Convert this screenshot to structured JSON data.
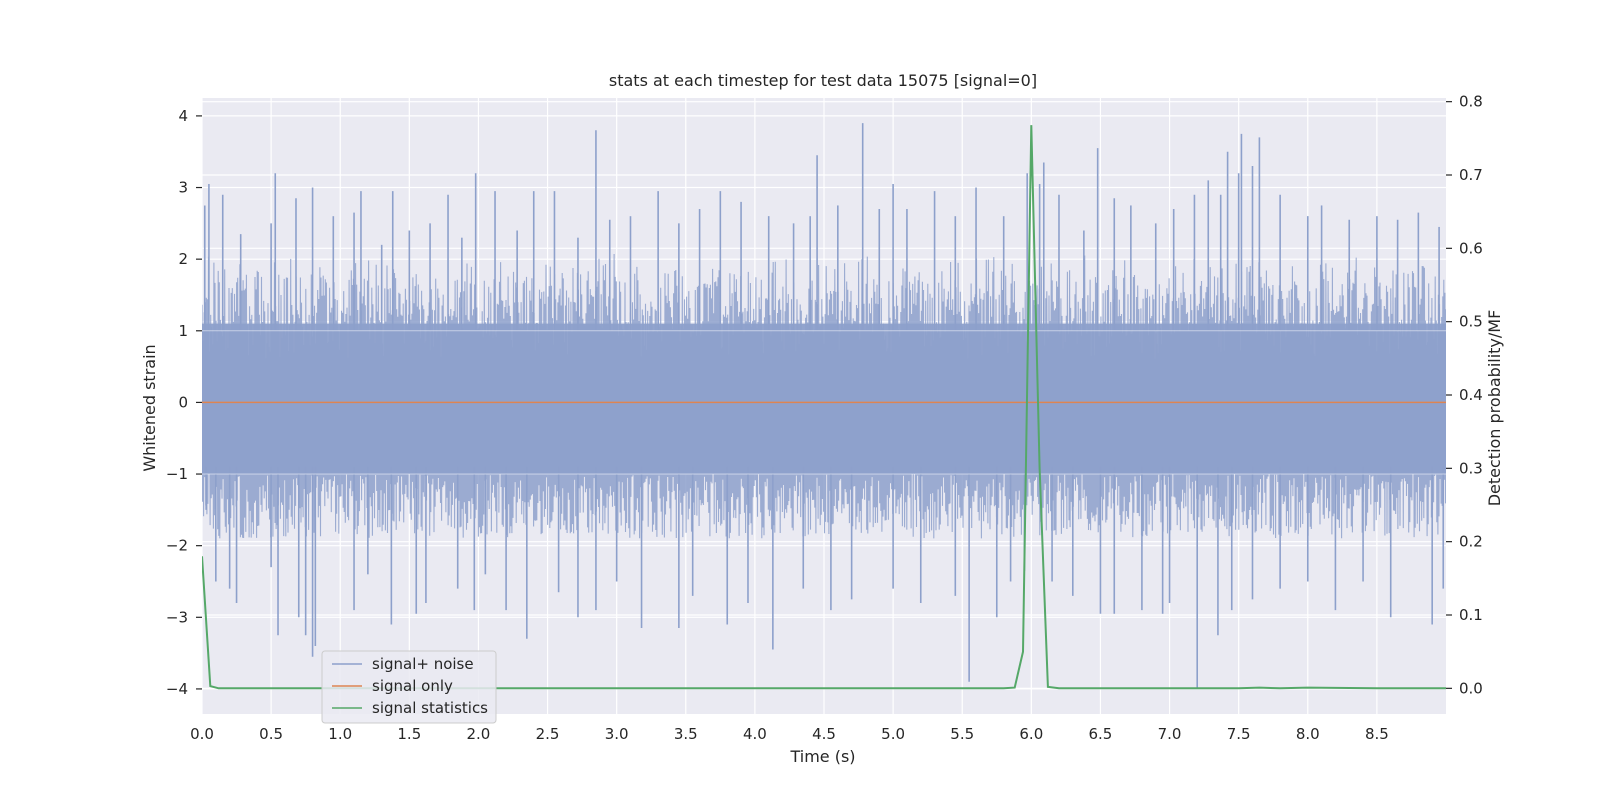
{
  "chart_data": {
    "type": "line",
    "title": "stats at each timestep for test data 15075 [signal=0]",
    "xlabel": "Time (s)",
    "ylabel_left": "Whitened strain",
    "ylabel_right": "Detection probability/MF",
    "xlim": [
      0.0,
      9.0
    ],
    "ylim_left": [
      -4.35,
      4.25
    ],
    "ylim_right": [
      -0.035,
      0.805
    ],
    "xticks": [
      "0.0",
      "0.5",
      "1.0",
      "1.5",
      "2.0",
      "2.5",
      "3.0",
      "3.5",
      "4.0",
      "4.5",
      "5.0",
      "5.5",
      "6.0",
      "6.5",
      "7.0",
      "7.5",
      "8.0",
      "8.5"
    ],
    "yticks_left": [
      "−4",
      "−3",
      "−2",
      "−1",
      "0",
      "1",
      "2",
      "3",
      "4"
    ],
    "yticks_right": [
      "0.0",
      "0.1",
      "0.2",
      "0.3",
      "0.4",
      "0.5",
      "0.6",
      "0.7",
      "0.8"
    ],
    "grid": true,
    "legend_position": "lower-left",
    "colors": {
      "noise": "#8da0cb",
      "signal_only": "#dd8452",
      "statistics": "#55a868",
      "plot_bg": "#eaeaf2",
      "grid": "#ffffff"
    },
    "series": [
      {
        "name": "signal+ noise",
        "axis": "left",
        "noise_band": [
          -1.0,
          1.1
        ],
        "peaks_high": [
          [
            0.02,
            2.75
          ],
          [
            0.05,
            3.05
          ],
          [
            0.15,
            2.9
          ],
          [
            0.28,
            2.35
          ],
          [
            0.5,
            2.5
          ],
          [
            0.53,
            3.2
          ],
          [
            0.68,
            2.85
          ],
          [
            0.8,
            3.0
          ],
          [
            0.95,
            2.6
          ],
          [
            1.1,
            2.65
          ],
          [
            1.15,
            2.95
          ],
          [
            1.3,
            2.2
          ],
          [
            1.38,
            2.95
          ],
          [
            1.5,
            2.4
          ],
          [
            1.65,
            2.5
          ],
          [
            1.78,
            2.9
          ],
          [
            1.88,
            2.3
          ],
          [
            1.98,
            3.2
          ],
          [
            2.12,
            2.95
          ],
          [
            2.28,
            2.4
          ],
          [
            2.4,
            2.95
          ],
          [
            2.55,
            2.95
          ],
          [
            2.72,
            2.3
          ],
          [
            2.85,
            3.8
          ],
          [
            2.95,
            2.55
          ],
          [
            3.1,
            2.6
          ],
          [
            3.3,
            2.95
          ],
          [
            3.45,
            2.5
          ],
          [
            3.6,
            2.7
          ],
          [
            3.75,
            2.95
          ],
          [
            3.9,
            2.8
          ],
          [
            4.1,
            2.6
          ],
          [
            4.28,
            2.5
          ],
          [
            4.4,
            2.6
          ],
          [
            4.45,
            3.45
          ],
          [
            4.6,
            2.75
          ],
          [
            4.78,
            3.9
          ],
          [
            4.9,
            2.7
          ],
          [
            5.0,
            3.05
          ],
          [
            5.1,
            2.7
          ],
          [
            5.3,
            2.95
          ],
          [
            5.45,
            2.6
          ],
          [
            5.6,
            3.0
          ],
          [
            5.8,
            2.6
          ],
          [
            5.97,
            3.2
          ],
          [
            6.06,
            3.05
          ],
          [
            6.09,
            3.35
          ],
          [
            6.2,
            2.9
          ],
          [
            6.38,
            2.4
          ],
          [
            6.48,
            3.55
          ],
          [
            6.6,
            2.85
          ],
          [
            6.72,
            2.75
          ],
          [
            6.9,
            2.5
          ],
          [
            7.03,
            2.7
          ],
          [
            7.18,
            2.9
          ],
          [
            7.28,
            3.1
          ],
          [
            7.37,
            2.9
          ],
          [
            7.42,
            3.5
          ],
          [
            7.5,
            3.2
          ],
          [
            7.52,
            3.75
          ],
          [
            7.6,
            3.3
          ],
          [
            7.65,
            3.7
          ],
          [
            7.8,
            2.9
          ],
          [
            8.0,
            2.6
          ],
          [
            8.1,
            2.75
          ],
          [
            8.3,
            2.55
          ],
          [
            8.5,
            2.6
          ],
          [
            8.65,
            2.55
          ],
          [
            8.8,
            2.65
          ],
          [
            8.95,
            2.45
          ]
        ],
        "peaks_low": [
          [
            0.03,
            -1.5
          ],
          [
            0.1,
            -2.5
          ],
          [
            0.2,
            -2.6
          ],
          [
            0.25,
            -2.8
          ],
          [
            0.5,
            -2.3
          ],
          [
            0.55,
            -3.25
          ],
          [
            0.7,
            -3.0
          ],
          [
            0.75,
            -3.25
          ],
          [
            0.8,
            -3.55
          ],
          [
            0.82,
            -3.4
          ],
          [
            1.1,
            -2.9
          ],
          [
            1.2,
            -2.4
          ],
          [
            1.37,
            -3.1
          ],
          [
            1.55,
            -2.95
          ],
          [
            1.62,
            -2.8
          ],
          [
            1.85,
            -2.6
          ],
          [
            1.97,
            -2.9
          ],
          [
            2.05,
            -2.4
          ],
          [
            2.2,
            -2.9
          ],
          [
            2.35,
            -3.3
          ],
          [
            2.58,
            -2.65
          ],
          [
            2.72,
            -3.0
          ],
          [
            2.85,
            -2.9
          ],
          [
            3.0,
            -2.5
          ],
          [
            3.18,
            -3.15
          ],
          [
            3.45,
            -3.15
          ],
          [
            3.55,
            -2.7
          ],
          [
            3.8,
            -3.1
          ],
          [
            3.95,
            -2.8
          ],
          [
            4.13,
            -3.45
          ],
          [
            4.35,
            -2.6
          ],
          [
            4.55,
            -2.9
          ],
          [
            4.7,
            -2.75
          ],
          [
            5.0,
            -2.6
          ],
          [
            5.2,
            -2.8
          ],
          [
            5.45,
            -2.7
          ],
          [
            5.55,
            -3.9
          ],
          [
            5.75,
            -3.0
          ],
          [
            5.85,
            -2.5
          ],
          [
            5.95,
            -2.35
          ],
          [
            6.15,
            -2.5
          ],
          [
            6.3,
            -2.7
          ],
          [
            6.5,
            -2.95
          ],
          [
            6.6,
            -2.95
          ],
          [
            6.8,
            -2.9
          ],
          [
            6.95,
            -2.95
          ],
          [
            7.0,
            -2.8
          ],
          [
            7.2,
            -4.0
          ],
          [
            7.35,
            -3.25
          ],
          [
            7.45,
            -2.9
          ],
          [
            7.6,
            -2.75
          ],
          [
            7.8,
            -2.6
          ],
          [
            8.0,
            -2.5
          ],
          [
            8.2,
            -2.9
          ],
          [
            8.4,
            -2.5
          ],
          [
            8.6,
            -3.0
          ],
          [
            8.9,
            -3.1
          ],
          [
            8.98,
            -2.6
          ]
        ]
      },
      {
        "name": "signal only",
        "axis": "left",
        "x": [
          0.0,
          9.0
        ],
        "values": [
          0.0,
          0.0
        ]
      },
      {
        "name": "signal statistics",
        "axis": "right",
        "x": [
          0.0,
          0.06,
          0.12,
          0.5,
          1.0,
          2.0,
          3.0,
          4.0,
          5.0,
          5.5,
          5.8,
          5.88,
          5.94,
          6.0,
          6.06,
          6.12,
          6.2,
          6.5,
          7.0,
          7.5,
          7.65,
          7.8,
          8.0,
          8.5,
          9.0
        ],
        "values": [
          0.18,
          0.003,
          0.0,
          0.0,
          0.0,
          0.0,
          0.0,
          0.0,
          0.0,
          0.0,
          0.0,
          0.001,
          0.05,
          0.768,
          0.3,
          0.002,
          0.0,
          0.0,
          0.0,
          0.0,
          0.001,
          0.0,
          0.001,
          0.0,
          0.0
        ]
      }
    ]
  }
}
